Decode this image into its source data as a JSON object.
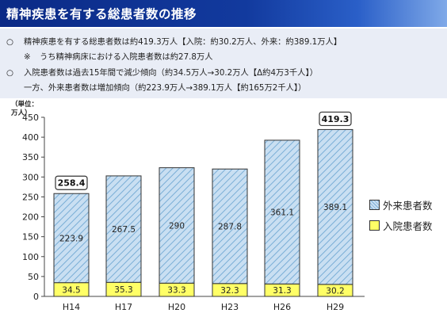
{
  "header": {
    "title": "精神疾患を有する総患者数の推移"
  },
  "summary": {
    "bullet_symbol": "○",
    "note_symbol": "※",
    "line1": "精神疾患を有する総患者数は約419.3万人【入院：約30.2万人、外来：約389.1万人】",
    "line2": "うち精神病床における入院患者数は約27.8万人",
    "line3": "入院患者数は過去15年間で減少傾向（約34.5万人→30.2万人【Δ約4万3千人】）",
    "line4": "一方、外来患者数は増加傾向（約223.9万人→389.1万人【約165万2千人】）"
  },
  "colors": {
    "outpatient_fill": "#c9dff2",
    "outpatient_hatch": "#7aaed6",
    "inpatient_fill": "#ffff66",
    "bar_border": "#333333",
    "axis": "#444444"
  },
  "chart_data": {
    "type": "bar",
    "stacked": true,
    "unit_label": "（単位：万人）",
    "categories": [
      "H14",
      "H17",
      "H20",
      "H23",
      "H26",
      "H29"
    ],
    "series": [
      {
        "name": "入院患者数",
        "values": [
          34.5,
          35.3,
          33.3,
          32.3,
          31.3,
          30.2
        ]
      },
      {
        "name": "外来患者数",
        "values": [
          223.9,
          267.5,
          290,
          287.8,
          361.1,
          389.1
        ]
      }
    ],
    "totals": {
      "H14": "258.4",
      "H29": "419.3"
    },
    "yticks": [
      0,
      50,
      100,
      150,
      200,
      250,
      300,
      350,
      400,
      450
    ],
    "ylim": [
      0,
      450
    ],
    "grid": false,
    "legend_position": "right",
    "legend": [
      "外来患者数",
      "入院患者数"
    ]
  }
}
